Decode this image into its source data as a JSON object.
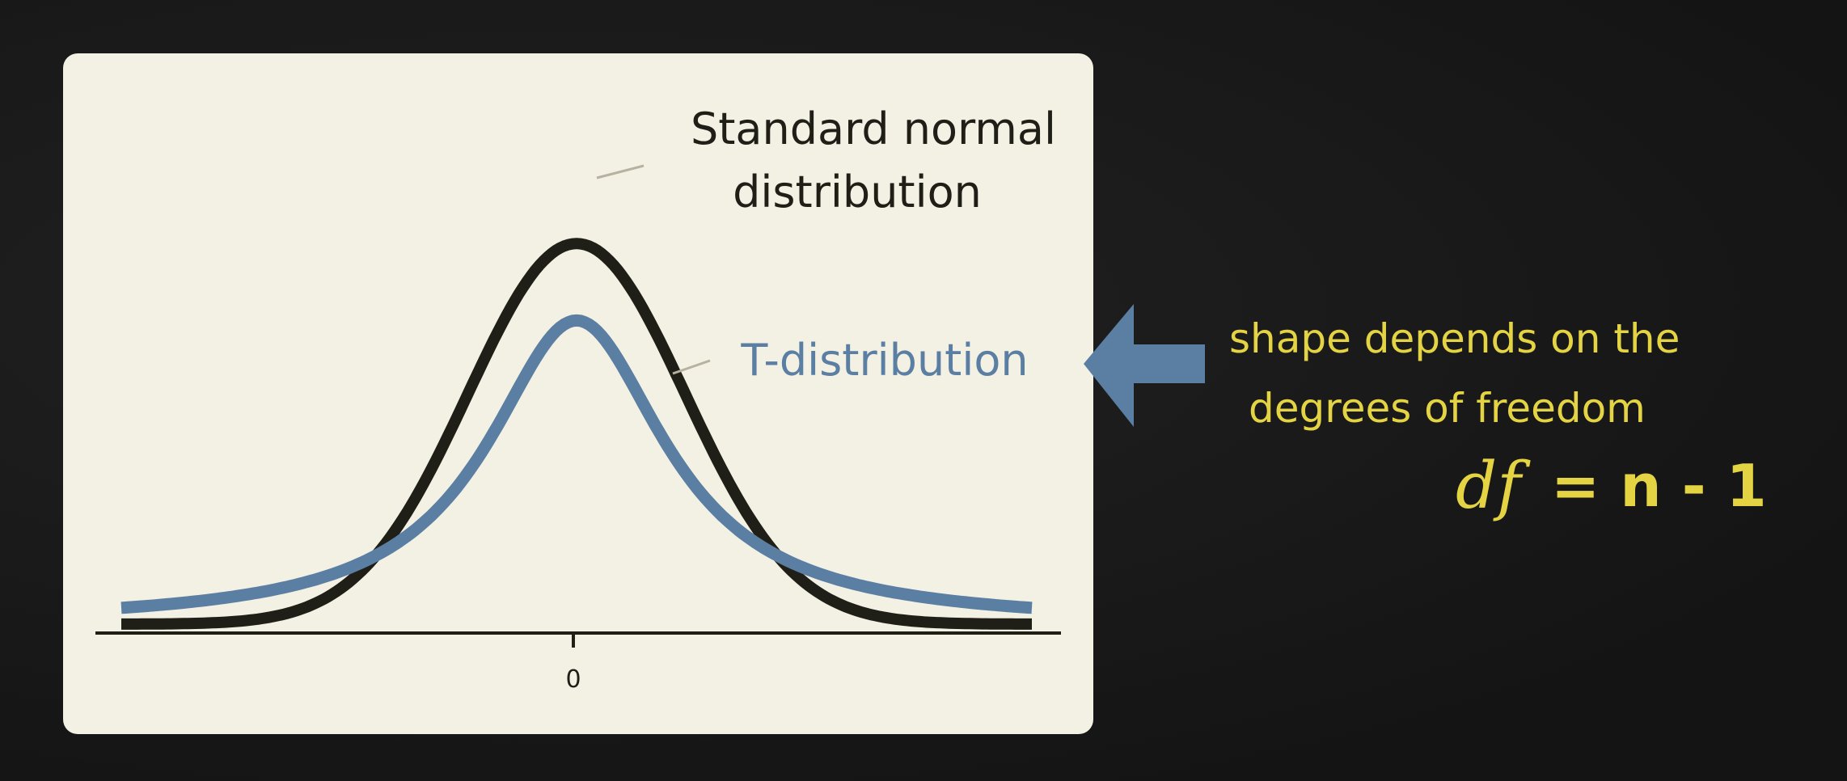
{
  "colors": {
    "background": "#1a1a1a",
    "panel": "#f3f0e4",
    "normal_curve": "#1f1e17",
    "t_curve": "#5b7ea3",
    "annotation": "#e4d443",
    "axis": "#1f1e17",
    "pointer_line": "#b7b29f"
  },
  "annotation": {
    "line1": "shape depends on the",
    "line2": "degrees of freedom",
    "formula_lhs": "df",
    "formula_rhs": "= n - 1",
    "arrow_icon": "left-arrow-icon"
  },
  "chart_data": {
    "type": "line",
    "title": "",
    "xlabel": "",
    "ylabel": "",
    "x_ticks": [
      "0"
    ],
    "xlim": [
      -4.2,
      4.2
    ],
    "grid": false,
    "legend": "none",
    "series": [
      {
        "name": "Standard normal distribution",
        "label_line1": "Standard normal",
        "label_line2": "distribution",
        "distribution": "normal",
        "mean": 0,
        "sd": 1,
        "peak_density": 0.399
      },
      {
        "name": "T-distribution",
        "label_line1": "T-distribution",
        "distribution": "t",
        "df": 1,
        "peak_density": 0.318
      }
    ]
  }
}
